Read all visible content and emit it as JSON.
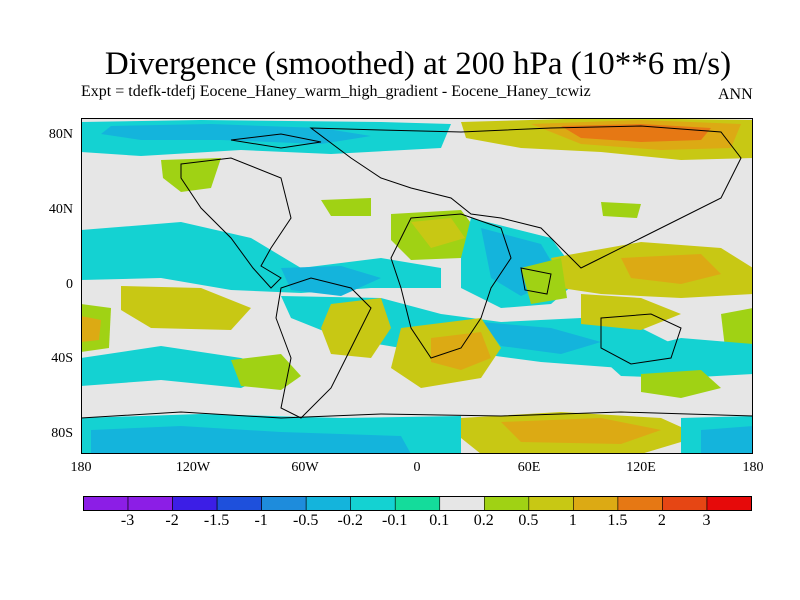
{
  "title": "Divergence (smoothed) at 200 hPa (10**6 m/s)",
  "subtitle": "Expt = tdefk-tdefj Eocene_Haney_warm_high_gradient - Eocene_Haney_tcwiz",
  "season": "ANN",
  "map": {
    "lat_labels": [
      "80N",
      "40N",
      "0",
      "40S",
      "80S"
    ],
    "lon_labels": [
      "180",
      "120W",
      "60W",
      "0",
      "60E",
      "120E",
      "180"
    ],
    "background_color": "#e6e6e6"
  },
  "colorbar": {
    "labels": [
      "-3",
      "-2",
      "-1.5",
      "-1",
      "-0.5",
      "-0.2",
      "-0.1",
      "0.1",
      "0.2",
      "0.5",
      "1",
      "1.5",
      "2",
      "3"
    ],
    "colors": [
      "#8c1ee6",
      "#3c1ee6",
      "#1e50dc",
      "#1e8cdc",
      "#14b4dc",
      "#14d2d2",
      "#14dc9b",
      "#e6e6e6",
      "#a0d214",
      "#c8c814",
      "#dcaa14",
      "#e67814",
      "#e64614",
      "#e60a0a"
    ]
  }
}
